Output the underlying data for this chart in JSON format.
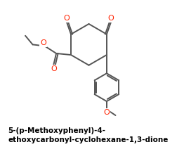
{
  "title": "5-(p-Methoxyphenyl)-4-\nethoxycarbonyl-cyclohexane-1,3-dione",
  "title_fontsize": 7.5,
  "title_color": "#000000",
  "bond_color": "#555555",
  "oxygen_color": "#ff2200",
  "line_width": 1.4,
  "background_color": "#ffffff",
  "figsize": [
    2.62,
    2.19
  ],
  "dpi": 100,
  "xlim": [
    0,
    10
  ],
  "ylim": [
    0,
    10
  ]
}
